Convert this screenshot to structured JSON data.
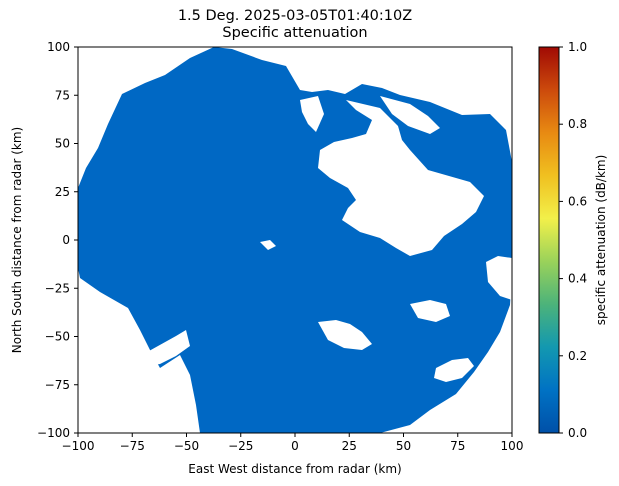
{
  "chart_data": {
    "type": "heatmap",
    "title_line1": "1.5 Deg. 2025-03-05T01:40:10Z",
    "title_line2": "Specific attenuation",
    "xlabel": "East West distance from radar (km)",
    "ylabel": "North South distance from radar (km)",
    "xlim": [
      -100,
      100
    ],
    "ylim": [
      -100,
      100
    ],
    "xticks": [
      "−100",
      "−75",
      "−50",
      "−25",
      "0",
      "25",
      "50",
      "75",
      "100"
    ],
    "yticks": [
      "−100",
      "−75",
      "−50",
      "−25",
      "0",
      "25",
      "50",
      "75",
      "100"
    ],
    "grid": false,
    "field_value_dominant": 0.0,
    "field_color": "#0068c4",
    "colorbar": {
      "label": "specific attenuation (dB/km)",
      "min": 0.0,
      "max": 1.0,
      "ticks": [
        "0.0",
        "0.2",
        "0.4",
        "0.6",
        "0.8",
        "1.0"
      ],
      "colormap_stops": [
        "#0050a8",
        "#0072c4",
        "#1398b0",
        "#4cb37a",
        "#9ad25a",
        "#f2f04a",
        "#f0c020",
        "#e88a12",
        "#cc4a0c",
        "#a00a04"
      ]
    }
  }
}
